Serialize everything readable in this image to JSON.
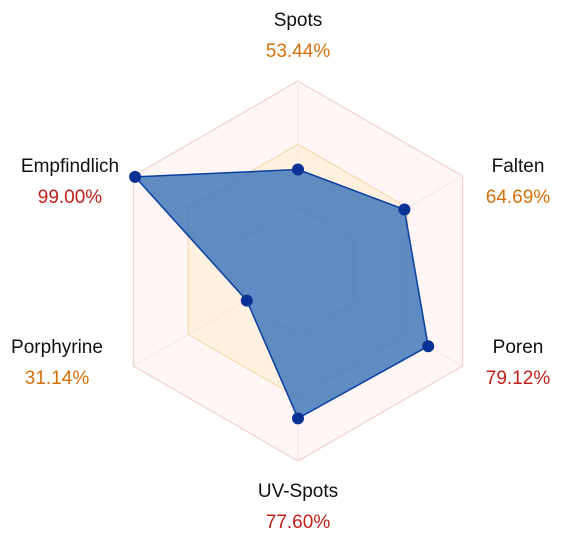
{
  "chart_data": {
    "type": "radar",
    "axes": [
      "Spots",
      "Falten",
      "Poren",
      "UV-Spots",
      "Porphyrine",
      "Empfindlich"
    ],
    "values": [
      53.44,
      64.69,
      79.12,
      77.6,
      31.14,
      99.0
    ],
    "value_labels": [
      "53.44%",
      "64.69%",
      "79.12%",
      "77.60%",
      "31.14%",
      "99.00%"
    ],
    "range": [
      0,
      100
    ],
    "rings": [
      33.3,
      66.7,
      100
    ],
    "colors": {
      "series_fill": "#3a74b8",
      "series_stroke": "#0a3ea0",
      "point": "#0a3296",
      "value_high": "#c0201a",
      "value_mid": "#d6700a",
      "ring_outer": "#f3cfcf",
      "ring_mid": "#f6d9b0",
      "ring_inner": "#cfe0f0",
      "band_outer": "#fff6f5",
      "band_mid": "#fff1e0",
      "band_inner": "#ffffff"
    },
    "value_label_colors": [
      "#d6700a",
      "#d6700a",
      "#c0201a",
      "#c0201a",
      "#d6700a",
      "#c0201a"
    ]
  }
}
